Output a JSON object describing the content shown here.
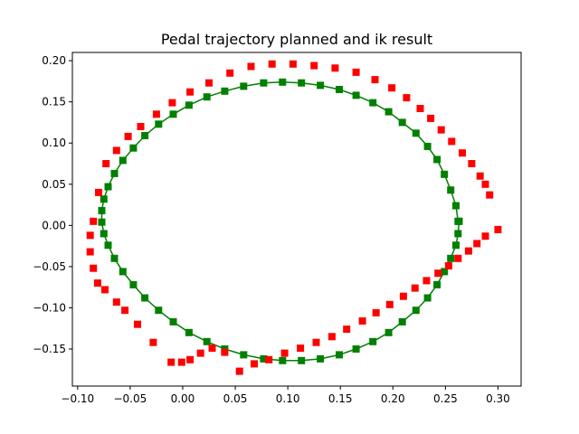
{
  "chart_data": {
    "type": "scatter",
    "title": "Pedal trajectory planned and ik result",
    "xlabel": "",
    "ylabel": "",
    "xlim": [
      -0.105,
      0.322
    ],
    "ylim": [
      -0.195,
      0.21
    ],
    "grid": false,
    "legend": "none",
    "x_ticks": [
      -0.1,
      -0.05,
      0.0,
      0.05,
      0.1,
      0.15,
      0.2,
      0.25,
      0.3
    ],
    "x_tick_labels": [
      "−0.10",
      "−0.05",
      "0.00",
      "0.05",
      "0.10",
      "0.15",
      "0.20",
      "0.25",
      "0.30"
    ],
    "y_ticks": [
      -0.15,
      -0.1,
      -0.05,
      0.0,
      0.05,
      0.1,
      0.15,
      0.2
    ],
    "y_tick_labels": [
      "−0.15",
      "−0.10",
      "−0.05",
      "0.00",
      "0.05",
      "0.10",
      "0.15",
      "0.20"
    ],
    "series": [
      {
        "style": "line+square",
        "color": "#008000",
        "x": [
          0.262,
          0.26,
          0.255,
          0.249,
          0.242,
          0.233,
          0.222,
          0.209,
          0.196,
          0.181,
          0.165,
          0.149,
          0.131,
          0.113,
          0.095,
          0.077,
          0.058,
          0.04,
          0.023,
          0.006,
          -0.009,
          -0.023,
          -0.036,
          -0.047,
          -0.057,
          -0.065,
          -0.071,
          -0.075,
          -0.077,
          -0.077,
          -0.075,
          -0.071,
          -0.065,
          -0.057,
          -0.047,
          -0.036,
          -0.023,
          -0.009,
          0.006,
          0.023,
          0.04,
          0.058,
          0.077,
          0.095,
          0.113,
          0.131,
          0.149,
          0.165,
          0.181,
          0.196,
          0.209,
          0.222,
          0.233,
          0.242,
          0.249,
          0.255,
          0.26,
          0.262,
          0.263
        ],
        "y": [
          0.005,
          0.024,
          0.043,
          0.062,
          0.08,
          0.096,
          0.112,
          0.125,
          0.138,
          0.149,
          0.158,
          0.165,
          0.17,
          0.173,
          0.174,
          0.173,
          0.169,
          0.163,
          0.156,
          0.146,
          0.135,
          0.123,
          0.109,
          0.094,
          0.079,
          0.063,
          0.047,
          0.032,
          0.018,
          0.004,
          -0.01,
          -0.024,
          -0.04,
          -0.056,
          -0.072,
          -0.088,
          -0.103,
          -0.117,
          -0.13,
          -0.141,
          -0.15,
          -0.157,
          -0.162,
          -0.164,
          -0.164,
          -0.162,
          -0.157,
          -0.15,
          -0.141,
          -0.13,
          -0.117,
          -0.103,
          -0.088,
          -0.072,
          -0.056,
          -0.04,
          -0.024,
          -0.01,
          0.005
        ]
      },
      {
        "style": "square",
        "color": "#ff0000",
        "x": [
          0.3,
          0.288,
          0.28,
          0.272,
          0.262,
          0.253,
          0.243,
          0.232,
          0.221,
          0.21,
          0.197,
          0.184,
          0.171,
          0.156,
          0.142,
          0.127,
          0.112,
          0.097,
          0.082,
          0.068,
          0.054,
          0.04,
          0.028,
          0.017,
          0.007,
          -0.001,
          -0.011,
          -0.028,
          -0.043,
          -0.055,
          -0.063,
          -0.074,
          -0.081,
          -0.085,
          -0.088,
          -0.088,
          -0.085,
          -0.08,
          -0.073,
          -0.063,
          -0.052,
          -0.04,
          -0.025,
          -0.01,
          0.007,
          0.025,
          0.045,
          0.065,
          0.085,
          0.105,
          0.125,
          0.145,
          0.165,
          0.183,
          0.199,
          0.213,
          0.226,
          0.236,
          0.246,
          0.256,
          0.266,
          0.275,
          0.283,
          0.288,
          0.292
        ],
        "y": [
          -0.005,
          -0.013,
          -0.022,
          -0.031,
          -0.04,
          -0.049,
          -0.058,
          -0.067,
          -0.076,
          -0.086,
          -0.096,
          -0.106,
          -0.116,
          -0.126,
          -0.135,
          -0.142,
          -0.149,
          -0.155,
          -0.163,
          -0.168,
          -0.177,
          -0.154,
          -0.149,
          -0.155,
          -0.163,
          -0.166,
          -0.166,
          -0.142,
          -0.12,
          -0.103,
          -0.093,
          -0.078,
          -0.07,
          -0.052,
          -0.032,
          -0.012,
          0.005,
          0.04,
          0.075,
          0.091,
          0.108,
          0.12,
          0.135,
          0.149,
          0.162,
          0.173,
          0.185,
          0.193,
          0.196,
          0.196,
          0.194,
          0.191,
          0.186,
          0.177,
          0.167,
          0.155,
          0.142,
          0.13,
          0.116,
          0.102,
          0.088,
          0.075,
          0.06,
          0.05,
          0.037
        ]
      }
    ]
  }
}
